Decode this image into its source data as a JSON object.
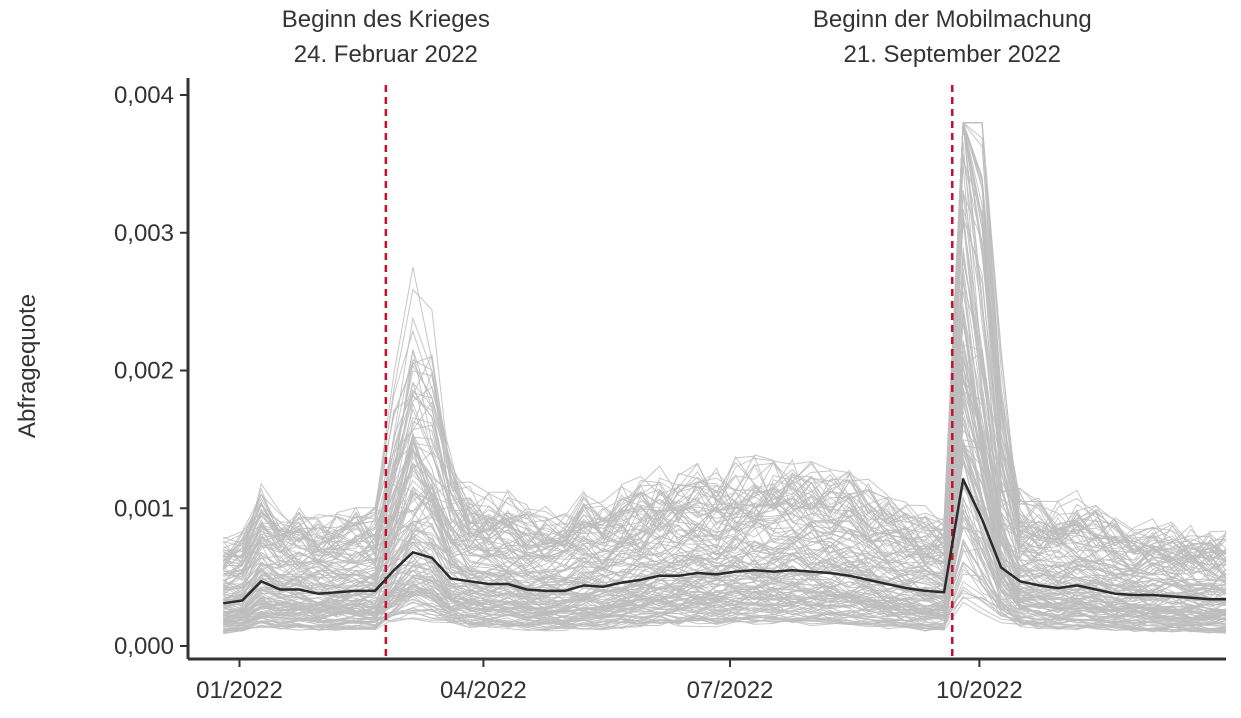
{
  "chart_data": {
    "type": "line",
    "title": "",
    "xlabel": "",
    "ylabel": "Abfragequote",
    "ylim": [
      0,
      0.004
    ],
    "xlim": [
      "2021-12-13",
      "2022-12-31"
    ],
    "grid": false,
    "legend": "none",
    "y_ticks": [
      {
        "value": 0.0,
        "label": "0,000"
      },
      {
        "value": 0.001,
        "label": "0,001"
      },
      {
        "value": 0.002,
        "label": "0,002"
      },
      {
        "value": 0.003,
        "label": "0,003"
      },
      {
        "value": 0.004,
        "label": "0,004"
      }
    ],
    "x_ticks": [
      {
        "date": "2022-01-01",
        "label": "01/2022"
      },
      {
        "date": "2022-04-01",
        "label": "04/2022"
      },
      {
        "date": "2022-07-01",
        "label": "07/2022"
      },
      {
        "date": "2022-10-01",
        "label": "10/2022"
      }
    ],
    "events": [
      {
        "date": "2022-02-24",
        "line1": "Beginn des Krieges",
        "line2": "24. Februar 2022"
      },
      {
        "date": "2022-09-21",
        "line1": "Beginn der Mobilmachung",
        "line2": "21. September 2022"
      }
    ],
    "series": [
      {
        "x": [
          "2021-12-26",
          "2022-01-02",
          "2022-01-09",
          "2022-01-16",
          "2022-01-23",
          "2022-01-30",
          "2022-02-06",
          "2022-02-13",
          "2022-02-20",
          "2022-02-27",
          "2022-03-06",
          "2022-03-13",
          "2022-03-20",
          "2022-03-27",
          "2022-04-03",
          "2022-04-10",
          "2022-04-17",
          "2022-04-24",
          "2022-05-01",
          "2022-05-08",
          "2022-05-15",
          "2022-05-22",
          "2022-05-29",
          "2022-06-05",
          "2022-06-12",
          "2022-06-19",
          "2022-06-26",
          "2022-07-03",
          "2022-07-10",
          "2022-07-17",
          "2022-07-24",
          "2022-07-31",
          "2022-08-07",
          "2022-08-14",
          "2022-08-21",
          "2022-08-28",
          "2022-09-04",
          "2022-09-11",
          "2022-09-18",
          "2022-09-25",
          "2022-10-02",
          "2022-10-09",
          "2022-10-16",
          "2022-10-23",
          "2022-10-30",
          "2022-11-06",
          "2022-11-13",
          "2022-11-20",
          "2022-11-27",
          "2022-12-04",
          "2022-12-11",
          "2022-12-18",
          "2022-12-25",
          "2022-12-31"
        ],
        "values": [
          0.00031,
          0.00033,
          0.00047,
          0.00041,
          0.00041,
          0.00038,
          0.00039,
          0.0004,
          0.0004,
          0.00055,
          0.00068,
          0.00064,
          0.00049,
          0.00047,
          0.00045,
          0.00045,
          0.00041,
          0.0004,
          0.0004,
          0.00044,
          0.00043,
          0.00046,
          0.00048,
          0.00051,
          0.00051,
          0.00053,
          0.00052,
          0.00054,
          0.00055,
          0.00054,
          0.00055,
          0.00054,
          0.00053,
          0.00051,
          0.00048,
          0.00045,
          0.00042,
          0.0004,
          0.00039,
          0.00121,
          0.00092,
          0.00057,
          0.00047,
          0.00044,
          0.00042,
          0.00044,
          0.00041,
          0.00038,
          0.00037,
          0.00037,
          0.00036,
          0.00035,
          0.00034,
          0.00034
        ]
      }
    ],
    "colors": {
      "background_lines": "#bdbdbd",
      "mean_line": "#2b2b2b",
      "event_line": "#c8102e",
      "axis": "#333333"
    }
  }
}
